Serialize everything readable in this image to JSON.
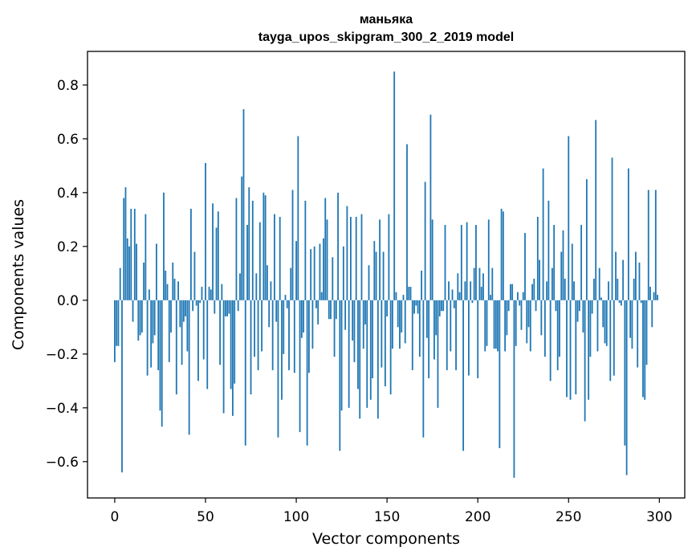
{
  "chart_data": {
    "type": "bar",
    "title": "маньяка",
    "subtitle": "tayga_upos_skipgram_300_2_2019 model",
    "xlabel": "Vector components",
    "ylabel": "Components values",
    "xlim": [
      -15,
      314
    ],
    "ylim": [
      -0.735,
      0.925
    ],
    "xticks": [
      0,
      50,
      100,
      150,
      200,
      250,
      300
    ],
    "xtick_labels": [
      "0",
      "50",
      "100",
      "150",
      "200",
      "250",
      "300"
    ],
    "yticks": [
      -0.6,
      -0.4,
      -0.2,
      0.0,
      0.2,
      0.4,
      0.6,
      0.8
    ],
    "ytick_labels": [
      "−0.6",
      "−0.4",
      "−0.2",
      "0.0",
      "0.2",
      "0.4",
      "0.6",
      "0.8"
    ],
    "bar_color": "#1f77b4",
    "grid": false,
    "values": [
      -0.23,
      -0.17,
      -0.17,
      0.12,
      -0.64,
      0.38,
      0.42,
      0.23,
      0.2,
      0.34,
      -0.08,
      0.34,
      0.21,
      -0.15,
      -0.13,
      -0.12,
      0.14,
      0.32,
      -0.28,
      0.04,
      -0.25,
      -0.16,
      -0.13,
      0.21,
      -0.26,
      -0.41,
      -0.47,
      0.4,
      0.11,
      0.06,
      -0.23,
      -0.12,
      0.14,
      0.08,
      -0.35,
      0.07,
      -0.1,
      -0.24,
      -0.08,
      -0.06,
      -0.19,
      -0.5,
      0.34,
      -0.04,
      0.18,
      -0.02,
      -0.3,
      -0.01,
      0.05,
      -0.22,
      0.51,
      -0.33,
      0.05,
      0.04,
      0.36,
      -0.05,
      0.27,
      0.33,
      -0.24,
      0.06,
      -0.42,
      -0.06,
      -0.06,
      -0.05,
      -0.33,
      -0.43,
      -0.31,
      0.38,
      -0.04,
      0.1,
      0.46,
      0.71,
      -0.54,
      0.28,
      0.42,
      -0.35,
      0.37,
      -0.21,
      0.1,
      -0.26,
      0.29,
      -0.19,
      0.4,
      0.39,
      0.13,
      -0.1,
      0.07,
      -0.26,
      0.32,
      -0.08,
      -0.51,
      0.31,
      -0.37,
      -0.2,
      0.02,
      -0.03,
      -0.26,
      0.12,
      0.41,
      -0.27,
      0.22,
      0.61,
      -0.49,
      -0.14,
      -0.12,
      0.37,
      -0.54,
      -0.27,
      0.19,
      -0.18,
      0.2,
      -0.03,
      -0.09,
      0.21,
      0.03,
      0.23,
      0.38,
      0.3,
      -0.07,
      -0.07,
      0.16,
      -0.21,
      -0.07,
      0.4,
      -0.56,
      -0.41,
      0.2,
      -0.11,
      0.35,
      -0.4,
      0.31,
      -0.15,
      -0.23,
      0.31,
      -0.33,
      -0.44,
      0.32,
      -0.18,
      -0.09,
      -0.4,
      0.13,
      -0.37,
      -0.29,
      0.22,
      0.18,
      -0.44,
      0.3,
      -0.25,
      0.18,
      -0.32,
      -0.06,
      0.32,
      -0.35,
      -0.18,
      0.85,
      0.03,
      -0.1,
      -0.18,
      -0.12,
      0.02,
      -0.16,
      0.58,
      0.05,
      0.05,
      -0.26,
      -0.05,
      -0.02,
      -0.05,
      -0.21,
      0.11,
      -0.51,
      0.44,
      -0.14,
      -0.29,
      0.69,
      0.3,
      -0.22,
      -0.13,
      -0.4,
      -0.06,
      -0.04,
      -0.04,
      0.28,
      -0.26,
      0.07,
      -0.19,
      0.04,
      -0.03,
      -0.26,
      0.1,
      0.03,
      0.28,
      -0.56,
      0.07,
      0.29,
      -0.28,
      0.07,
      -0.01,
      0.12,
      0.28,
      -0.29,
      0.12,
      0.05,
      0.1,
      -0.19,
      -0.17,
      0.3,
      0.02,
      0.12,
      -0.18,
      -0.18,
      -0.19,
      -0.55,
      0.34,
      0.33,
      -0.19,
      -0.13,
      -0.04,
      0.06,
      0.06,
      -0.66,
      -0.17,
      0.03,
      -0.02,
      -0.11,
      0.03,
      0.25,
      -0.16,
      -0.1,
      -0.19,
      0.06,
      0.08,
      -0.04,
      0.31,
      0.15,
      -0.13,
      0.49,
      -0.21,
      0.07,
      0.37,
      -0.3,
      0.12,
      0.28,
      -0.04,
      -0.26,
      -0.21,
      0.18,
      0.26,
      0.08,
      -0.36,
      0.61,
      -0.37,
      0.21,
      0.07,
      -0.35,
      -0.08,
      -0.04,
      0.28,
      -0.12,
      -0.45,
      0.45,
      -0.37,
      -0.21,
      -0.05,
      0.08,
      0.67,
      -0.19,
      0.12,
      0.01,
      -0.1,
      -0.16,
      -0.17,
      0.07,
      -0.3,
      0.53,
      -0.28,
      0.18,
      0.08,
      -0.01,
      -0.02,
      0.15,
      -0.54,
      -0.65,
      0.49,
      -0.14,
      -0.18,
      0.08,
      0.18,
      -0.25,
      0.14,
      -0.01,
      -0.36,
      -0.37,
      -0.24,
      0.41,
      0.05,
      -0.1,
      0.03,
      0.41,
      0.02
    ]
  }
}
